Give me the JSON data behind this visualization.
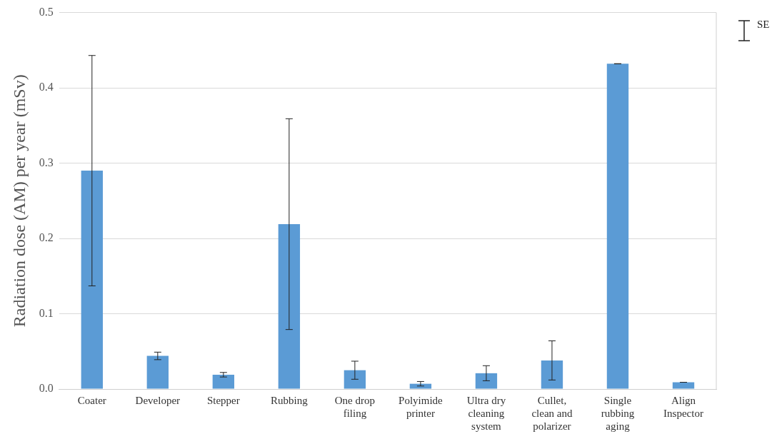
{
  "chart_data": {
    "type": "bar",
    "ylabel": "Radiation dose (AM) per year (mSv)",
    "categories": [
      "Coater",
      "Developer",
      "Stepper",
      "Rubbing",
      "One drop filing",
      "Polyimide printer",
      "Ultra dry cleaning system",
      "Cullet, clean and polarizer",
      "Single rubbing aging",
      "Align Inspector"
    ],
    "values": [
      0.29,
      0.044,
      0.019,
      0.219,
      0.025,
      0.007,
      0.021,
      0.038,
      0.432,
      0.009
    ],
    "errors": [
      0.153,
      0.005,
      0.003,
      0.14,
      0.012,
      0.003,
      0.01,
      0.026,
      0,
      0
    ],
    "color": "#5b9bd5",
    "ylim": [
      0,
      0.5
    ],
    "yticks": [
      {
        "value": 0,
        "label": "0.0"
      },
      {
        "value": 0.1,
        "label": "0.1"
      },
      {
        "value": 0.2,
        "label": "0.2"
      },
      {
        "value": 0.3,
        "label": "0.3"
      },
      {
        "value": 0.4,
        "label": "0.4"
      },
      {
        "value": 0.5,
        "label": "0.5"
      }
    ],
    "grid": "y",
    "annotations": [
      "SE"
    ]
  }
}
